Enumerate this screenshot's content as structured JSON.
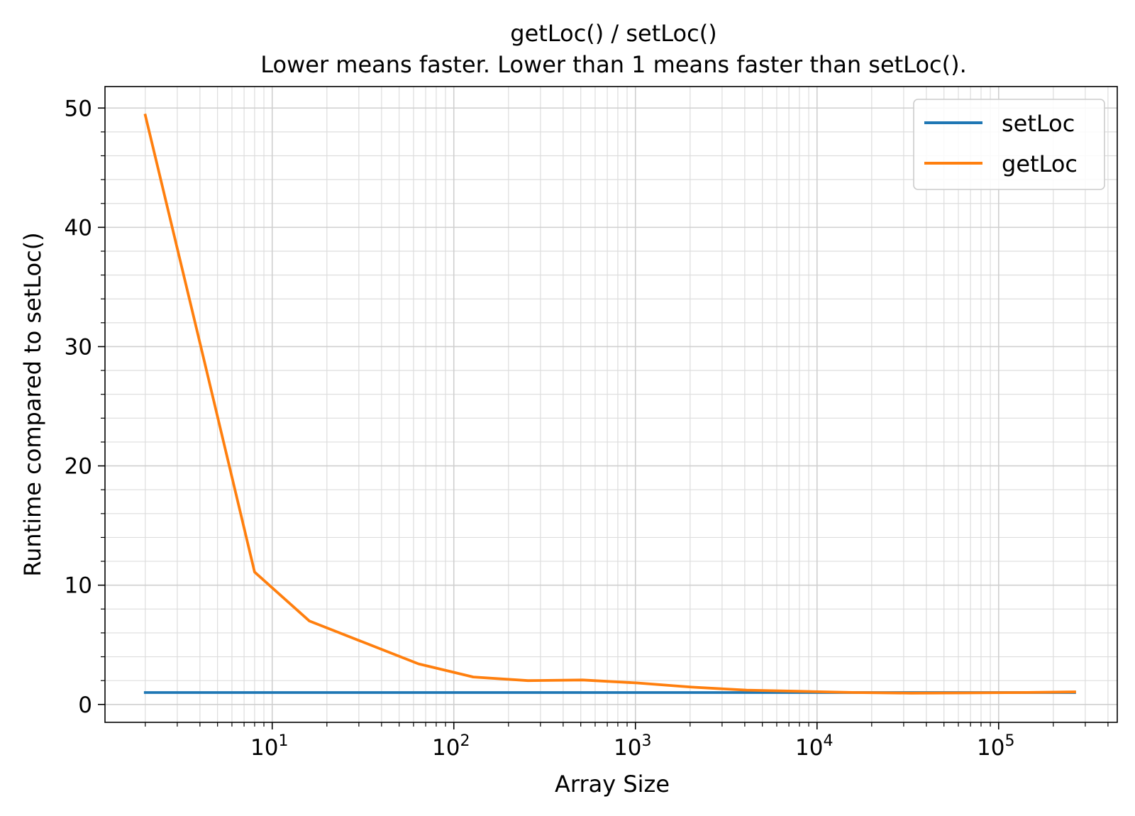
{
  "chart_data": {
    "type": "line",
    "title": "getLoc() / setLoc()",
    "subtitle": "Lower means faster. Lower than 1 means faster than setLoc().",
    "xlabel": "Array Size",
    "ylabel": "Runtime compared to setLoc()",
    "x_scale": "log",
    "xlim": [
      1.2,
      450000
    ],
    "ylim": [
      -1.5,
      51.8
    ],
    "x_ticks": [
      {
        "value": 10,
        "base": "10",
        "exp": "1"
      },
      {
        "value": 100,
        "base": "10",
        "exp": "2"
      },
      {
        "value": 1000,
        "base": "10",
        "exp": "3"
      },
      {
        "value": 10000,
        "base": "10",
        "exp": "4"
      },
      {
        "value": 100000,
        "base": "10",
        "exp": "5"
      }
    ],
    "y_ticks": [
      {
        "value": 0,
        "label": "0"
      },
      {
        "value": 10,
        "label": "10"
      },
      {
        "value": 20,
        "label": "20"
      },
      {
        "value": 30,
        "label": "30"
      },
      {
        "value": 40,
        "label": "40"
      },
      {
        "value": 50,
        "label": "50"
      }
    ],
    "grid": true,
    "legend_position": "top-right",
    "x": [
      2,
      4,
      8,
      16,
      32,
      64,
      128,
      256,
      512,
      1024,
      2048,
      4096,
      8192,
      16384,
      32768,
      65536,
      131072,
      262144
    ],
    "series": [
      {
        "name": "setLoc",
        "color": "#1f77b4",
        "values": [
          1,
          1,
          1,
          1,
          1,
          1,
          1,
          1,
          1,
          1,
          1,
          1,
          1,
          1,
          1,
          1,
          1,
          1
        ]
      },
      {
        "name": "getLoc",
        "color": "#ff7f0e",
        "values": [
          49.4,
          30.3,
          11.1,
          7.0,
          5.2,
          3.4,
          2.3,
          2.0,
          2.05,
          1.8,
          1.45,
          1.2,
          1.1,
          1.0,
          0.95,
          0.97,
          1.0,
          1.05
        ]
      }
    ]
  }
}
